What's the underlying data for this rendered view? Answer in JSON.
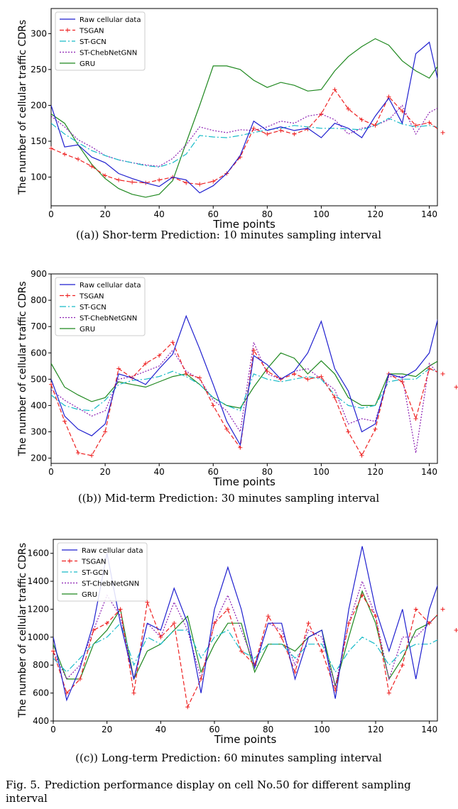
{
  "figure": {
    "caption_label": "Fig. 5.",
    "caption_text": "Prediction performance display on cell No.50 for different sampling interval"
  },
  "chart_data": [
    {
      "type": "line",
      "subcaption": "((a)) Shor-term Prediction: 10 minutes sampling interval",
      "xlabel": "Time points",
      "ylabel": "The number of cellular traffic CDRs",
      "xlim": [
        0,
        143
      ],
      "ylim": [
        60,
        335
      ],
      "xticks": [
        0,
        20,
        40,
        60,
        80,
        100,
        120,
        140
      ],
      "yticks": [
        100,
        150,
        200,
        250,
        300
      ],
      "legend_position": "top-left",
      "x_step": 5,
      "series": [
        {
          "name": "Raw cellular data",
          "color": "#1f1fcf",
          "dash": "solid",
          "marker": "none",
          "values": [
            200,
            142,
            145,
            128,
            120,
            105,
            98,
            92,
            87,
            100,
            96,
            78,
            88,
            105,
            130,
            178,
            165,
            170,
            165,
            168,
            155,
            175,
            168,
            155,
            185,
            210,
            175,
            272,
            288,
            205
          ]
        },
        {
          "name": "TSGAN",
          "color": "#ee2222",
          "dash": "6,3",
          "marker": "plus",
          "values": [
            140,
            132,
            125,
            115,
            102,
            96,
            93,
            92,
            96,
            100,
            92,
            90,
            94,
            105,
            128,
            168,
            160,
            165,
            160,
            167,
            188,
            222,
            195,
            180,
            172,
            212,
            192,
            172,
            176,
            162
          ]
        },
        {
          "name": "ST-GCN",
          "color": "#17bbc8",
          "dash": "9,3,2,3",
          "marker": "none",
          "values": [
            175,
            160,
            148,
            137,
            130,
            124,
            120,
            116,
            114,
            120,
            132,
            158,
            156,
            155,
            158,
            162,
            166,
            168,
            172,
            170,
            168,
            168,
            167,
            166,
            172,
            182,
            174,
            170,
            172,
            168
          ]
        },
        {
          "name": "ST-ChebNetGNN",
          "color": "#8c1fb2",
          "dash": "2,2",
          "marker": "none",
          "values": [
            185,
            170,
            152,
            142,
            130,
            124,
            120,
            117,
            115,
            126,
            145,
            170,
            165,
            162,
            166,
            165,
            170,
            178,
            175,
            185,
            188,
            180,
            160,
            168,
            172,
            180,
            200,
            160,
            190,
            200
          ]
        },
        {
          "name": "GRU",
          "color": "#1f881f",
          "dash": "solid",
          "marker": "none",
          "values": [
            188,
            175,
            145,
            118,
            98,
            84,
            76,
            72,
            76,
            95,
            148,
            200,
            255,
            255,
            250,
            235,
            225,
            232,
            228,
            220,
            222,
            248,
            268,
            282,
            293,
            284,
            262,
            248,
            238,
            265
          ]
        }
      ]
    },
    {
      "type": "line",
      "subcaption": "((b)) Mid-term Prediction: 30 minutes sampling interval",
      "xlabel": "Time points",
      "ylabel": "The number of cellular traffic CDRs",
      "xlim": [
        0,
        143
      ],
      "ylim": [
        180,
        900
      ],
      "xticks": [
        0,
        20,
        40,
        60,
        80,
        100,
        120,
        140
      ],
      "yticks": [
        200,
        300,
        400,
        500,
        600,
        700,
        800,
        900
      ],
      "legend_position": "top-left",
      "x_step": 5,
      "series": [
        {
          "name": "Raw cellular data",
          "color": "#1f1fcf",
          "dash": "solid",
          "marker": "none",
          "values": [
            500,
            360,
            310,
            285,
            330,
            520,
            505,
            480,
            540,
            595,
            740,
            615,
            480,
            340,
            250,
            590,
            555,
            500,
            530,
            600,
            720,
            540,
            455,
            300,
            330,
            520,
            505,
            535,
            600,
            805,
            490
          ]
        },
        {
          "name": "TSGAN",
          "color": "#ee2222",
          "dash": "6,3",
          "marker": "plus",
          "values": [
            480,
            340,
            220,
            210,
            300,
            540,
            505,
            560,
            590,
            640,
            520,
            505,
            400,
            310,
            240,
            610,
            530,
            500,
            520,
            500,
            510,
            430,
            300,
            210,
            310,
            520,
            490,
            350,
            540,
            520,
            470
          ]
        },
        {
          "name": "ST-GCN",
          "color": "#17bbc8",
          "dash": "9,3,2,3",
          "marker": "none",
          "values": [
            440,
            400,
            385,
            380,
            420,
            480,
            495,
            500,
            510,
            530,
            510,
            480,
            430,
            400,
            380,
            520,
            500,
            490,
            500,
            510,
            500,
            440,
            400,
            390,
            400,
            490,
            500,
            500,
            540,
            520,
            480
          ]
        },
        {
          "name": "ST-ChebNetGNN",
          "color": "#8c1fb2",
          "dash": "2,2",
          "marker": "none",
          "values": [
            460,
            420,
            390,
            360,
            380,
            500,
            510,
            530,
            550,
            610,
            530,
            500,
            420,
            380,
            300,
            640,
            520,
            500,
            530,
            540,
            500,
            460,
            330,
            350,
            340,
            510,
            510,
            220,
            560,
            500,
            460
          ]
        },
        {
          "name": "GRU",
          "color": "#1f881f",
          "dash": "solid",
          "marker": "none",
          "values": [
            560,
            470,
            440,
            415,
            430,
            490,
            480,
            470,
            490,
            510,
            520,
            480,
            430,
            400,
            390,
            470,
            540,
            600,
            580,
            520,
            570,
            520,
            430,
            400,
            400,
            520,
            520,
            510,
            550,
            580,
            550
          ]
        }
      ]
    },
    {
      "type": "line",
      "subcaption": "((c)) Long-term Prediction: 60 minutes sampling interval",
      "xlabel": "Time points",
      "ylabel": "The number of cellular traffic CDRs",
      "xlim": [
        0,
        143
      ],
      "ylim": [
        400,
        1700
      ],
      "xticks": [
        0,
        20,
        40,
        60,
        80,
        100,
        120,
        140
      ],
      "yticks": [
        400,
        600,
        800,
        1000,
        1200,
        1400,
        1600
      ],
      "legend_position": "top-left",
      "x_step": 5,
      "series": [
        {
          "name": "Raw cellular data",
          "color": "#1f1fcf",
          "dash": "solid",
          "marker": "none",
          "values": [
            1000,
            550,
            780,
            1100,
            1600,
            1100,
            700,
            1100,
            1050,
            1350,
            1100,
            600,
            1200,
            1500,
            1200,
            780,
            1100,
            1100,
            700,
            1000,
            1050,
            560,
            1200,
            1650,
            1200,
            900,
            1200,
            700,
            1200,
            1480,
            1300
          ]
        },
        {
          "name": "TSGAN",
          "color": "#ee2222",
          "dash": "6,3",
          "marker": "plus",
          "values": [
            900,
            600,
            700,
            1050,
            1100,
            1200,
            600,
            1250,
            1000,
            1100,
            500,
            700,
            1100,
            1200,
            900,
            800,
            1150,
            1000,
            750,
            1100,
            900,
            620,
            1100,
            1300,
            1150,
            600,
            800,
            1200,
            1100,
            1200,
            1050
          ]
        },
        {
          "name": "ST-GCN",
          "color": "#17bbc8",
          "dash": "9,3,2,3",
          "marker": "none",
          "values": [
            850,
            750,
            850,
            950,
            1000,
            1100,
            800,
            1000,
            950,
            1050,
            1050,
            850,
            1000,
            1050,
            900,
            850,
            950,
            950,
            850,
            950,
            950,
            750,
            900,
            1000,
            950,
            800,
            900,
            950,
            950,
            1000,
            950
          ]
        },
        {
          "name": "ST-ChebNetGNN",
          "color": "#8c1fb2",
          "dash": "2,2",
          "marker": "none",
          "values": [
            900,
            700,
            800,
            1050,
            1300,
            1150,
            700,
            1100,
            1000,
            1250,
            1050,
            700,
            1100,
            1300,
            1050,
            800,
            1100,
            1050,
            800,
            1050,
            1000,
            650,
            1100,
            1400,
            1150,
            700,
            1000,
            1000,
            1100,
            1200,
            1150
          ]
        },
        {
          "name": "GRU",
          "color": "#1f881f",
          "dash": "solid",
          "marker": "none",
          "values": [
            950,
            700,
            700,
            950,
            1050,
            1200,
            700,
            900,
            950,
            1050,
            1150,
            750,
            950,
            1100,
            1100,
            750,
            950,
            950,
            900,
            1000,
            1050,
            650,
            1000,
            1330,
            1100,
            700,
            850,
            1050,
            1100,
            1200,
            1230
          ]
        }
      ]
    }
  ]
}
